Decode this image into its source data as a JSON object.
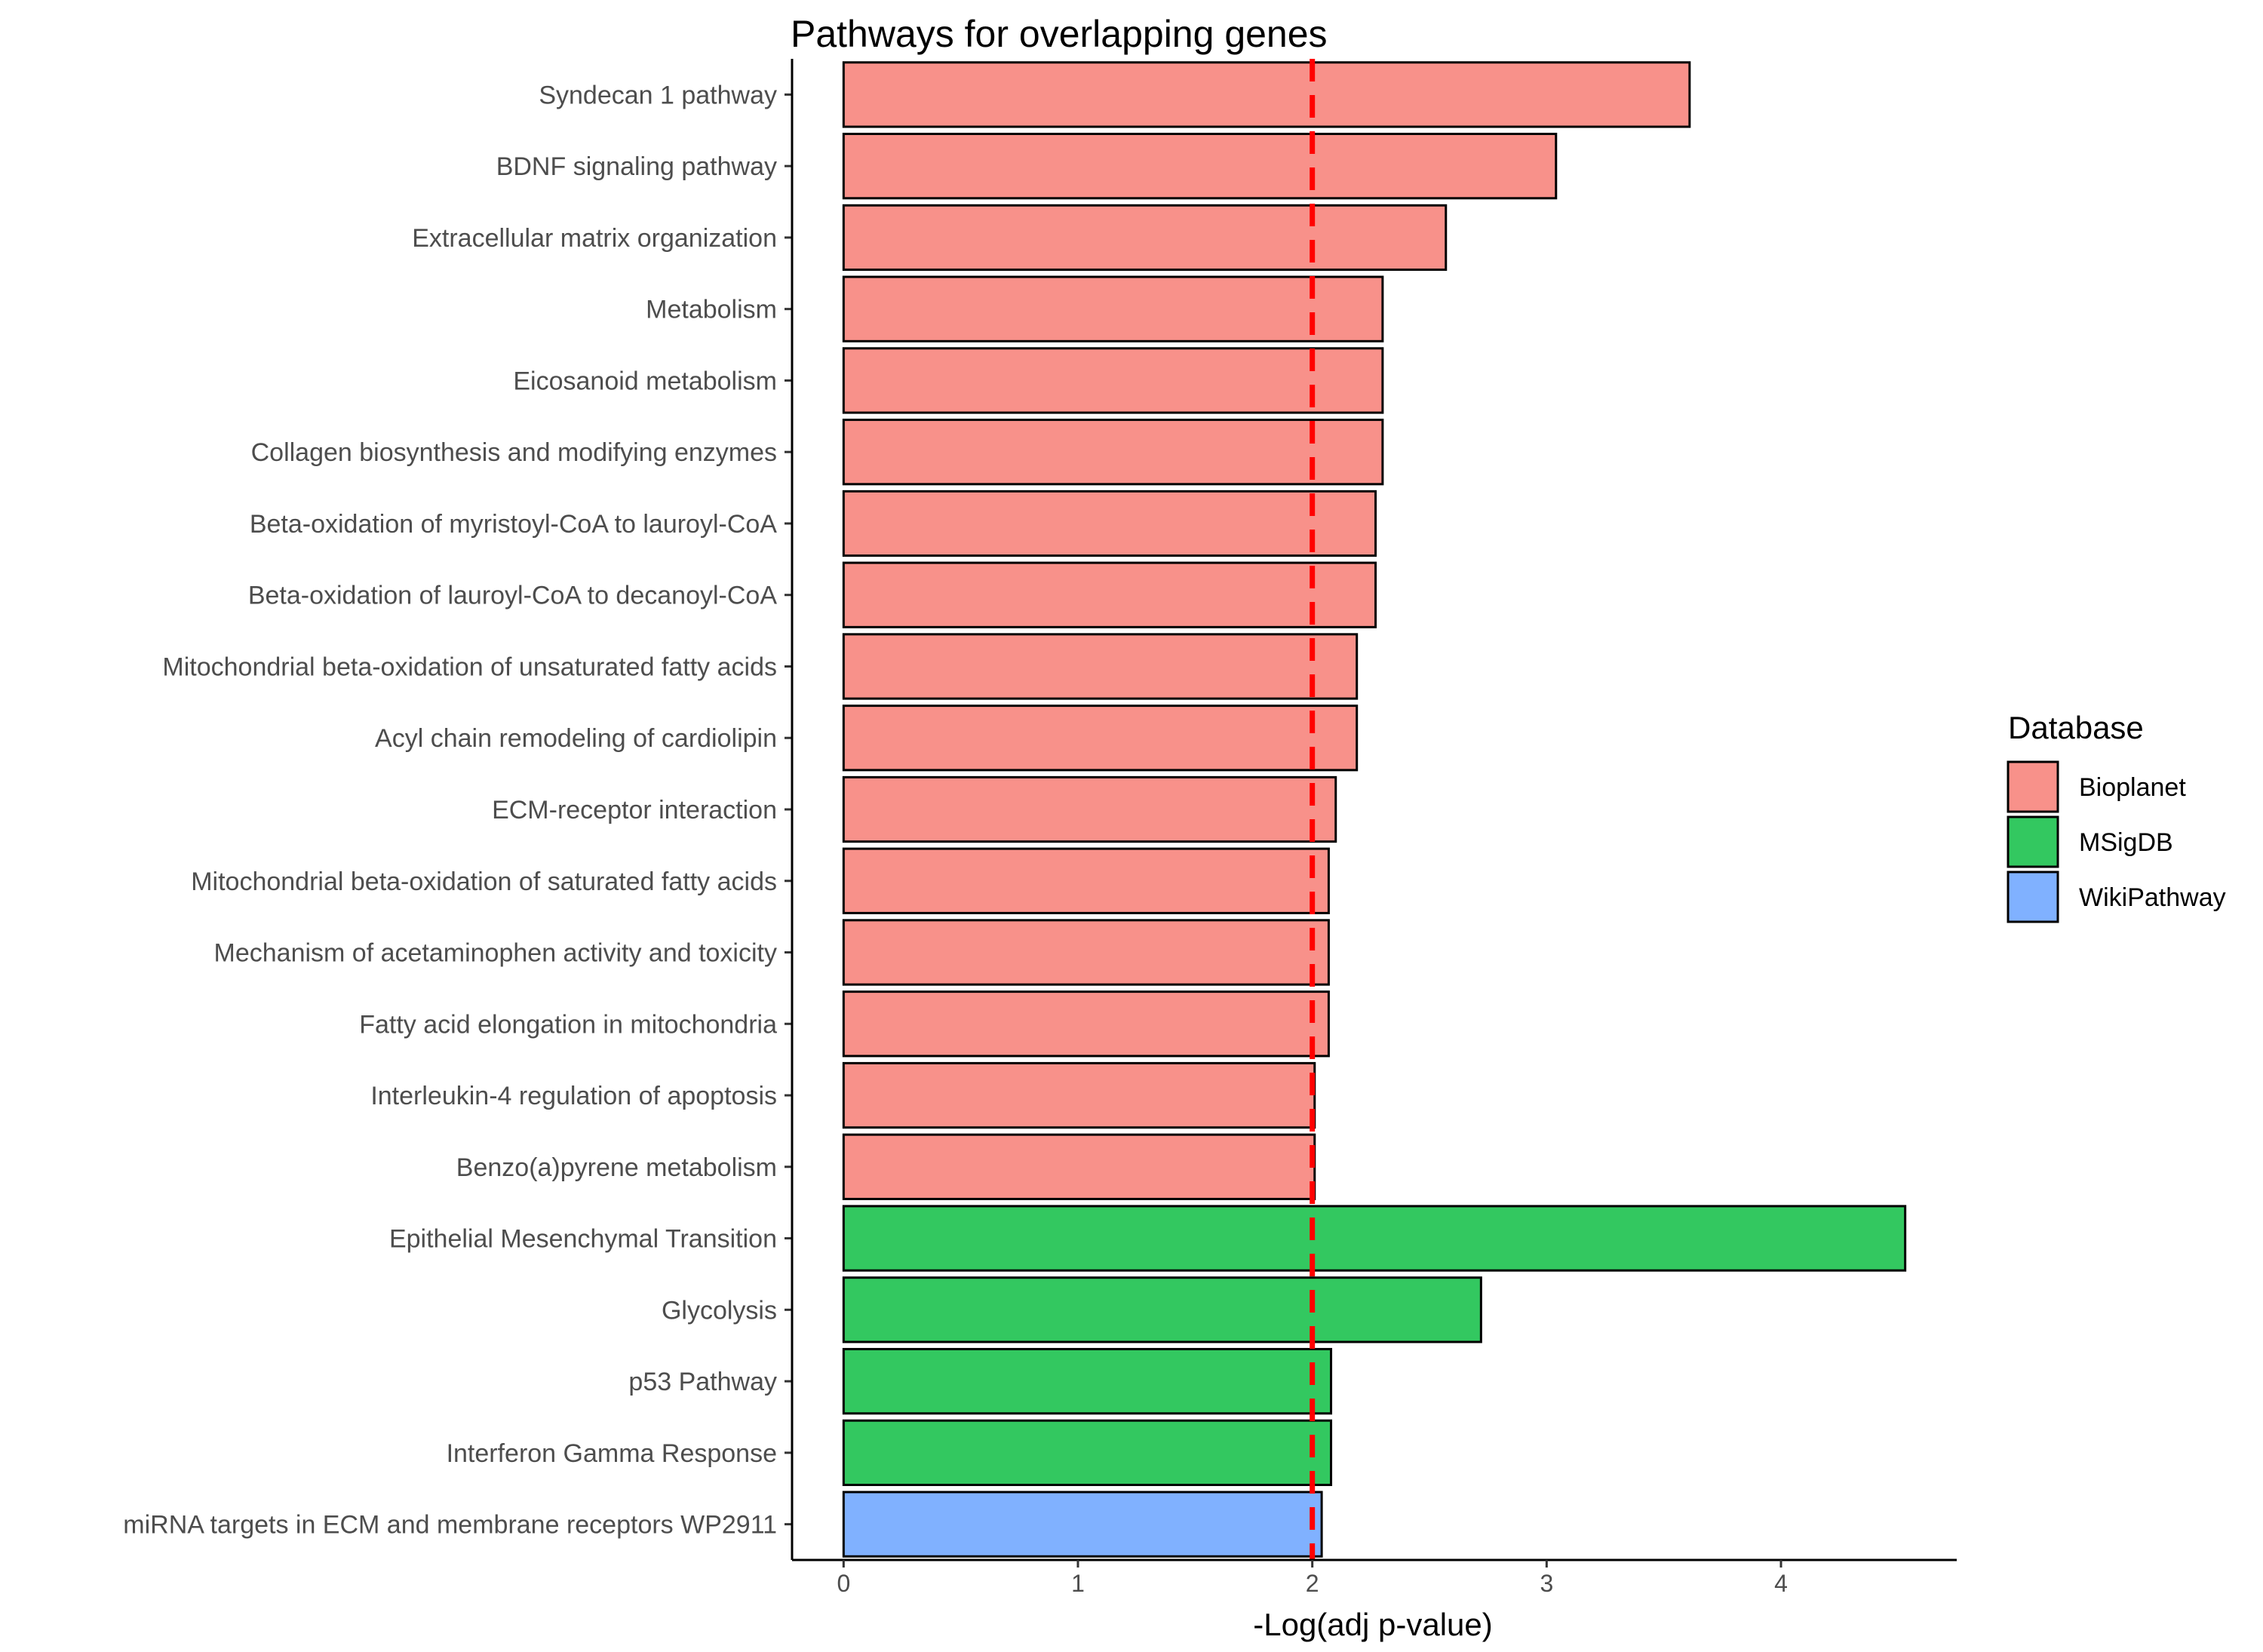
{
  "chart_data": {
    "type": "bar",
    "orientation": "horizontal",
    "title": "Pathways for overlapping genes",
    "xlabel": "-Log(adj p-value)",
    "ylabel": "",
    "xlim": [
      -0.22,
      4.75
    ],
    "x_ticks": [
      0,
      1,
      2,
      3,
      4
    ],
    "x_tick_labels": [
      "0",
      "1",
      "2",
      "3",
      "4"
    ],
    "grid": false,
    "reference_line": {
      "x": 2,
      "color": "#ff0000",
      "style": "dashed"
    },
    "legend": {
      "title": "Database",
      "position": "right",
      "entries": [
        {
          "name": "Bioplanet",
          "color": "#f8918a"
        },
        {
          "name": "MSigDB",
          "color": "#33c860"
        },
        {
          "name": "WikiPathway",
          "color": "#80b1ff"
        }
      ]
    },
    "bars": [
      {
        "label": "Syndecan 1 pathway",
        "value": 3.61,
        "database": "Bioplanet"
      },
      {
        "label": "BDNF signaling pathway",
        "value": 3.04,
        "database": "Bioplanet"
      },
      {
        "label": "Extracellular matrix organization",
        "value": 2.57,
        "database": "Bioplanet"
      },
      {
        "label": "Metabolism",
        "value": 2.3,
        "database": "Bioplanet"
      },
      {
        "label": "Eicosanoid metabolism",
        "value": 2.3,
        "database": "Bioplanet"
      },
      {
        "label": "Collagen biosynthesis and modifying enzymes",
        "value": 2.3,
        "database": "Bioplanet"
      },
      {
        "label": "Beta-oxidation of myristoyl-CoA to lauroyl-CoA",
        "value": 2.27,
        "database": "Bioplanet"
      },
      {
        "label": "Beta-oxidation of lauroyl-CoA to decanoyl-CoA",
        "value": 2.27,
        "database": "Bioplanet"
      },
      {
        "label": "Mitochondrial beta-oxidation of unsaturated fatty acids",
        "value": 2.19,
        "database": "Bioplanet"
      },
      {
        "label": "Acyl chain remodeling of cardiolipin",
        "value": 2.19,
        "database": "Bioplanet"
      },
      {
        "label": "ECM-receptor interaction",
        "value": 2.1,
        "database": "Bioplanet"
      },
      {
        "label": "Mitochondrial beta-oxidation of saturated fatty acids",
        "value": 2.07,
        "database": "Bioplanet"
      },
      {
        "label": "Mechanism of acetaminophen activity and toxicity",
        "value": 2.07,
        "database": "Bioplanet"
      },
      {
        "label": "Fatty acid elongation in mitochondria",
        "value": 2.07,
        "database": "Bioplanet"
      },
      {
        "label": "Interleukin-4 regulation of apoptosis",
        "value": 2.01,
        "database": "Bioplanet"
      },
      {
        "label": "Benzo(a)pyrene metabolism",
        "value": 2.01,
        "database": "Bioplanet"
      },
      {
        "label": "Epithelial Mesenchymal Transition",
        "value": 4.53,
        "database": "MSigDB"
      },
      {
        "label": "Glycolysis",
        "value": 2.72,
        "database": "MSigDB"
      },
      {
        "label": "p53 Pathway",
        "value": 2.08,
        "database": "MSigDB"
      },
      {
        "label": "Interferon Gamma Response",
        "value": 2.08,
        "database": "MSigDB"
      },
      {
        "label": "miRNA targets in ECM and membrane receptors WP2911",
        "value": 2.04,
        "database": "WikiPathway"
      }
    ]
  }
}
